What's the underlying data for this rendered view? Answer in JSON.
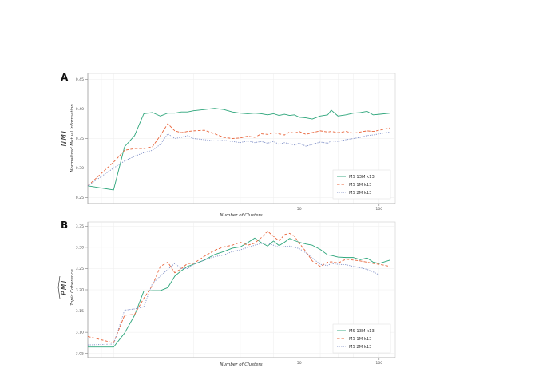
{
  "chart_data": [
    {
      "type": "line",
      "panel_label": "A",
      "ylabel_math": "NMI",
      "ylabel": "Normalized Mutual Information",
      "xlabel": "Number of Clusters",
      "x_scale": "log",
      "x_ticks": [
        50,
        100
      ],
      "xlim": [
        8,
        115
      ],
      "ylim": [
        0.24,
        0.46
      ],
      "y_ticks": [
        0.25,
        0.3,
        0.35,
        0.4,
        0.45
      ],
      "grid": true,
      "legend_position": "bottom-right",
      "series": [
        {
          "name": "MS 13M k13",
          "color": "#2ca57a",
          "dash": "solid",
          "x": [
            8,
            10,
            11,
            12,
            13,
            14,
            15,
            16,
            17,
            18,
            19,
            20,
            22,
            24,
            26,
            28,
            30,
            32,
            34,
            36,
            38,
            40,
            42,
            44,
            46,
            48,
            50,
            53,
            56,
            60,
            64,
            66,
            70,
            75,
            80,
            85,
            90,
            95,
            100,
            110
          ],
          "values": [
            0.27,
            0.263,
            0.336,
            0.355,
            0.392,
            0.394,
            0.388,
            0.393,
            0.393,
            0.395,
            0.395,
            0.397,
            0.399,
            0.401,
            0.399,
            0.395,
            0.393,
            0.392,
            0.393,
            0.392,
            0.39,
            0.392,
            0.389,
            0.391,
            0.389,
            0.39,
            0.386,
            0.385,
            0.383,
            0.388,
            0.39,
            0.398,
            0.388,
            0.39,
            0.393,
            0.394,
            0.396,
            0.39,
            0.391,
            0.393
          ]
        },
        {
          "name": "MS 1M k13",
          "color": "#e8643a",
          "dash": "dashed",
          "x": [
            8,
            10,
            11,
            12,
            13,
            14,
            15,
            16,
            17,
            18,
            19,
            20,
            22,
            24,
            26,
            28,
            30,
            32,
            34,
            36,
            38,
            40,
            42,
            44,
            46,
            48,
            50,
            53,
            56,
            60,
            64,
            66,
            70,
            75,
            80,
            85,
            90,
            95,
            100,
            110
          ],
          "values": [
            0.27,
            0.31,
            0.33,
            0.333,
            0.333,
            0.336,
            0.355,
            0.375,
            0.363,
            0.36,
            0.362,
            0.363,
            0.364,
            0.358,
            0.352,
            0.35,
            0.351,
            0.354,
            0.352,
            0.358,
            0.357,
            0.36,
            0.358,
            0.356,
            0.361,
            0.359,
            0.362,
            0.357,
            0.36,
            0.363,
            0.361,
            0.362,
            0.36,
            0.362,
            0.359,
            0.361,
            0.363,
            0.362,
            0.364,
            0.368
          ]
        },
        {
          "name": "MS 2M k13",
          "color": "#7f8fc7",
          "dash": "dotted",
          "x": [
            8,
            10,
            11,
            12,
            13,
            14,
            15,
            16,
            17,
            18,
            19,
            20,
            22,
            24,
            26,
            28,
            30,
            32,
            34,
            36,
            38,
            40,
            42,
            44,
            46,
            48,
            50,
            53,
            56,
            60,
            64,
            66,
            70,
            75,
            80,
            85,
            90,
            95,
            100,
            110
          ],
          "values": [
            0.27,
            0.3,
            0.312,
            0.32,
            0.326,
            0.33,
            0.34,
            0.358,
            0.35,
            0.352,
            0.355,
            0.35,
            0.348,
            0.346,
            0.347,
            0.345,
            0.343,
            0.346,
            0.343,
            0.345,
            0.342,
            0.345,
            0.34,
            0.343,
            0.341,
            0.339,
            0.342,
            0.337,
            0.34,
            0.344,
            0.342,
            0.346,
            0.345,
            0.348,
            0.35,
            0.352,
            0.355,
            0.356,
            0.358,
            0.361
          ]
        }
      ]
    },
    {
      "type": "line",
      "panel_label": "B",
      "ylabel_math": "PMI",
      "ylabel": "Topic Coherence",
      "xlabel": "Number of Clusters",
      "x_scale": "log",
      "x_ticks": [
        50,
        100
      ],
      "xlim": [
        8,
        115
      ],
      "ylim": [
        3.04,
        3.36
      ],
      "y_ticks": [
        3.05,
        3.1,
        3.15,
        3.2,
        3.25,
        3.3,
        3.35
      ],
      "grid": true,
      "legend_position": "bottom-right",
      "series": [
        {
          "name": "MS 13M k13",
          "color": "#2ca57a",
          "dash": "solid",
          "x": [
            8,
            10,
            11,
            12,
            13,
            14,
            15,
            16,
            17,
            18,
            19,
            20,
            22,
            24,
            26,
            28,
            30,
            32,
            34,
            36,
            38,
            40,
            42,
            44,
            46,
            48,
            50,
            53,
            56,
            60,
            64,
            66,
            70,
            75,
            80,
            85,
            90,
            95,
            100,
            110
          ],
          "values": [
            3.065,
            3.065,
            3.098,
            3.14,
            3.197,
            3.198,
            3.198,
            3.205,
            3.232,
            3.245,
            3.255,
            3.26,
            3.27,
            3.283,
            3.29,
            3.298,
            3.301,
            3.311,
            3.322,
            3.311,
            3.303,
            3.315,
            3.304,
            3.312,
            3.321,
            3.316,
            3.312,
            3.308,
            3.305,
            3.295,
            3.282,
            3.281,
            3.277,
            3.276,
            3.276,
            3.271,
            3.275,
            3.265,
            3.262,
            3.27
          ]
        },
        {
          "name": "MS 1M k13",
          "color": "#e8643a",
          "dash": "dashed",
          "x": [
            8,
            10,
            11,
            12,
            13,
            14,
            15,
            16,
            17,
            18,
            19,
            20,
            22,
            24,
            26,
            28,
            30,
            32,
            34,
            36,
            38,
            40,
            42,
            44,
            46,
            48,
            50,
            53,
            56,
            60,
            64,
            66,
            70,
            75,
            80,
            85,
            90,
            95,
            100,
            110
          ],
          "values": [
            3.09,
            3.075,
            3.14,
            3.142,
            3.18,
            3.21,
            3.255,
            3.265,
            3.24,
            3.25,
            3.262,
            3.262,
            3.279,
            3.293,
            3.301,
            3.305,
            3.312,
            3.305,
            3.31,
            3.323,
            3.338,
            3.326,
            3.315,
            3.33,
            3.333,
            3.326,
            3.31,
            3.29,
            3.268,
            3.255,
            3.265,
            3.266,
            3.263,
            3.272,
            3.27,
            3.268,
            3.265,
            3.262,
            3.26,
            3.255
          ]
        },
        {
          "name": "MS 2M k13",
          "color": "#7f8fc7",
          "dash": "dotted",
          "x": [
            8,
            10,
            11,
            12,
            13,
            14,
            15,
            16,
            17,
            18,
            19,
            20,
            22,
            24,
            26,
            28,
            30,
            32,
            34,
            36,
            38,
            40,
            42,
            44,
            46,
            48,
            50,
            53,
            56,
            60,
            64,
            66,
            70,
            75,
            80,
            85,
            90,
            95,
            100,
            110
          ],
          "values": [
            3.07,
            3.072,
            3.152,
            3.155,
            3.16,
            3.215,
            3.232,
            3.248,
            3.262,
            3.25,
            3.25,
            3.26,
            3.27,
            3.278,
            3.282,
            3.29,
            3.294,
            3.3,
            3.305,
            3.309,
            3.31,
            3.305,
            3.3,
            3.302,
            3.303,
            3.3,
            3.297,
            3.287,
            3.275,
            3.26,
            3.257,
            3.262,
            3.26,
            3.259,
            3.255,
            3.252,
            3.248,
            3.242,
            3.235,
            3.235
          ]
        }
      ]
    }
  ]
}
